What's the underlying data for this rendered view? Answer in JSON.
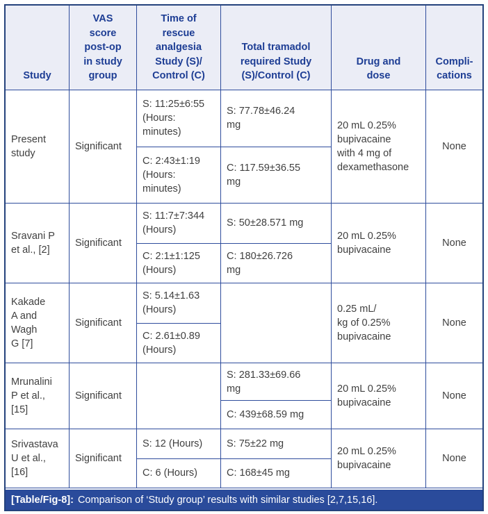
{
  "colors": {
    "outer_border": "#24427c",
    "grid_line": "#2e4c9c",
    "header_bg": "#ebedf6",
    "header_text": "#1d3d94",
    "body_text": "#3f3f3f",
    "caption_bg": "#2a4b9b",
    "caption_text": "#ffffff"
  },
  "table": {
    "header": {
      "study": "Study",
      "vas": "VAS\nscore\npost-op\nin study\ngroup",
      "time": "Time of\nrescue\nanalgesia\nStudy (S)/\nControl (C)",
      "tramadol": "Total tramadol\nrequired Study\n(S)/Control (C)",
      "drug": "Drug and\ndose",
      "complications": "Compli-\ncations"
    },
    "rows": [
      {
        "study": "Present\nstudy",
        "vas": "Significant",
        "time_s": "S: 11:25±6:55\n(Hours:\nminutes)",
        "time_c": "C: 2:43±1:19\n(Hours:\nminutes)",
        "tramadol_s": "S: 77.78±46.24\nmg",
        "tramadol_c": "C: 117.59±36.55\nmg",
        "drug": "20 mL 0.25%\nbupivacaine\nwith 4 mg of\ndexamethasone",
        "complications": "None"
      },
      {
        "study": "Sravani P\net al., [2]",
        "vas": "Significant",
        "time_s": "S: 11:7±7:344\n(Hours)",
        "time_c": "C: 2:1±1:125\n(Hours)",
        "tramadol_s": "S: 50±28.571 mg",
        "tramadol_c": "C: 180±26.726\nmg",
        "drug": "20 mL 0.25%\nbupivacaine",
        "complications": "None"
      },
      {
        "study": "Kakade\nA and\nWagh\nG [7]",
        "vas": "Significant",
        "time_s": "S: 5.14±1.63\n(Hours)",
        "time_c": "C: 2.61±0.89\n(Hours)",
        "tramadol_empty": "",
        "drug": "0.25 mL/\nkg of 0.25%\nbupivacaine",
        "complications": "None"
      },
      {
        "study": "Mrunalini\nP et al.,\n[15]",
        "vas": "Significant",
        "time_empty": "",
        "tramadol_s": "S: 281.33±69.66\nmg",
        "tramadol_c": "C: 439±68.59 mg",
        "drug": "20 mL 0.25%\nbupivacaine",
        "complications": "None"
      },
      {
        "study": "Srivastava\nU et al.,\n[16]",
        "vas": "Significant",
        "time_s": "S: 12 (Hours)",
        "time_c": "C: 6 (Hours)",
        "tramadol_s": "S: 75±22 mg",
        "tramadol_c": "C: 168±45 mg",
        "drug": "20 mL 0.25%\nbupivacaine",
        "complications": "None"
      }
    ]
  },
  "caption": {
    "label": "[Table/Fig-8]:",
    "text": "Comparison of ‘Study group’ results with similar studies [2,7,15,16]."
  }
}
